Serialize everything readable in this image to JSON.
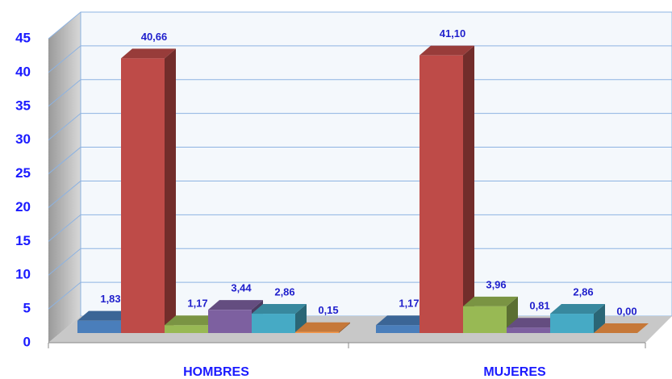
{
  "chart_data": {
    "type": "bar3d",
    "categories": [
      "HOMBRES",
      "MUJERES"
    ],
    "series": [
      {
        "color": "#4a7ebb",
        "values": [
          1.83,
          1.17
        ],
        "value_labels": [
          "1,83",
          "1,17"
        ]
      },
      {
        "color": "#be4b48",
        "values": [
          40.66,
          41.1
        ],
        "value_labels": [
          "40,66",
          "41,10"
        ]
      },
      {
        "color": "#98b954",
        "values": [
          1.17,
          3.96
        ],
        "value_labels": [
          "1,17",
          "3,96"
        ]
      },
      {
        "color": "#7d60a0",
        "values": [
          3.44,
          0.81
        ],
        "value_labels": [
          "3,44",
          "0,81"
        ]
      },
      {
        "color": "#46aac5",
        "values": [
          2.86,
          2.86
        ],
        "value_labels": [
          "2,86",
          "2,86"
        ]
      },
      {
        "color": "#f79646",
        "values": [
          0.15,
          0.0
        ],
        "value_labels": [
          "0,15",
          "0,00"
        ]
      }
    ],
    "ylim": [
      0,
      45
    ],
    "yticks": [
      0,
      5,
      10,
      15,
      20,
      25,
      30,
      35,
      40,
      45
    ],
    "grid": true
  }
}
